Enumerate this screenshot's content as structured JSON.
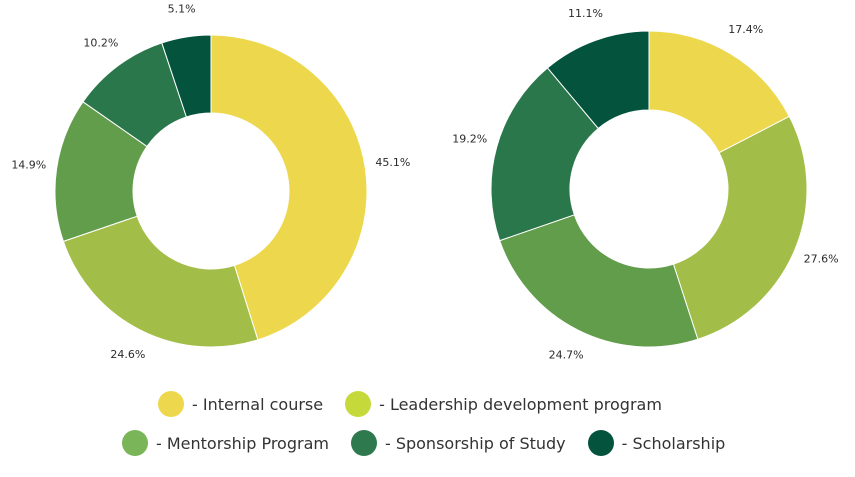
{
  "colors": {
    "internal_course": "#EDD84D",
    "leadership_development": "#A3BE48",
    "mentorship": "#629D4B",
    "sponsorship": "#2A774B",
    "scholarship": "#03533D"
  },
  "legend": [
    {
      "label": "- Internal course",
      "swatch": "#EDD84D"
    },
    {
      "label": "- Leadership development program",
      "swatch": "#C5D93A"
    },
    {
      "label": "- Mentorship Program",
      "swatch": "#7AB55A"
    },
    {
      "label": "- Sponsorship of Study",
      "swatch": "#2E7A4E"
    },
    {
      "label": "- Scholarship",
      "swatch": "#03533D"
    }
  ],
  "chart_data": [
    {
      "type": "pie",
      "donut": true,
      "categories": [
        "Internal course",
        "Leadership development program",
        "Mentorship Program",
        "Sponsorship of Study",
        "Scholarship"
      ],
      "values": [
        45.1,
        24.6,
        14.9,
        10.2,
        5.1
      ],
      "labels": [
        "45.1%",
        "24.6%",
        "14.9%",
        "10.2%",
        "5.1%"
      ],
      "start_angle": "top, clockwise"
    },
    {
      "type": "pie",
      "donut": true,
      "categories": [
        "Internal course",
        "Leadership development program",
        "Mentorship Program",
        "Sponsorship of Study",
        "Scholarship"
      ],
      "values": [
        17.4,
        27.6,
        24.7,
        19.2,
        11.1
      ],
      "labels": [
        "17.4%",
        "27.6%",
        "24.7%",
        "19.2%",
        "11.1%"
      ],
      "start_angle": "top, clockwise"
    }
  ]
}
